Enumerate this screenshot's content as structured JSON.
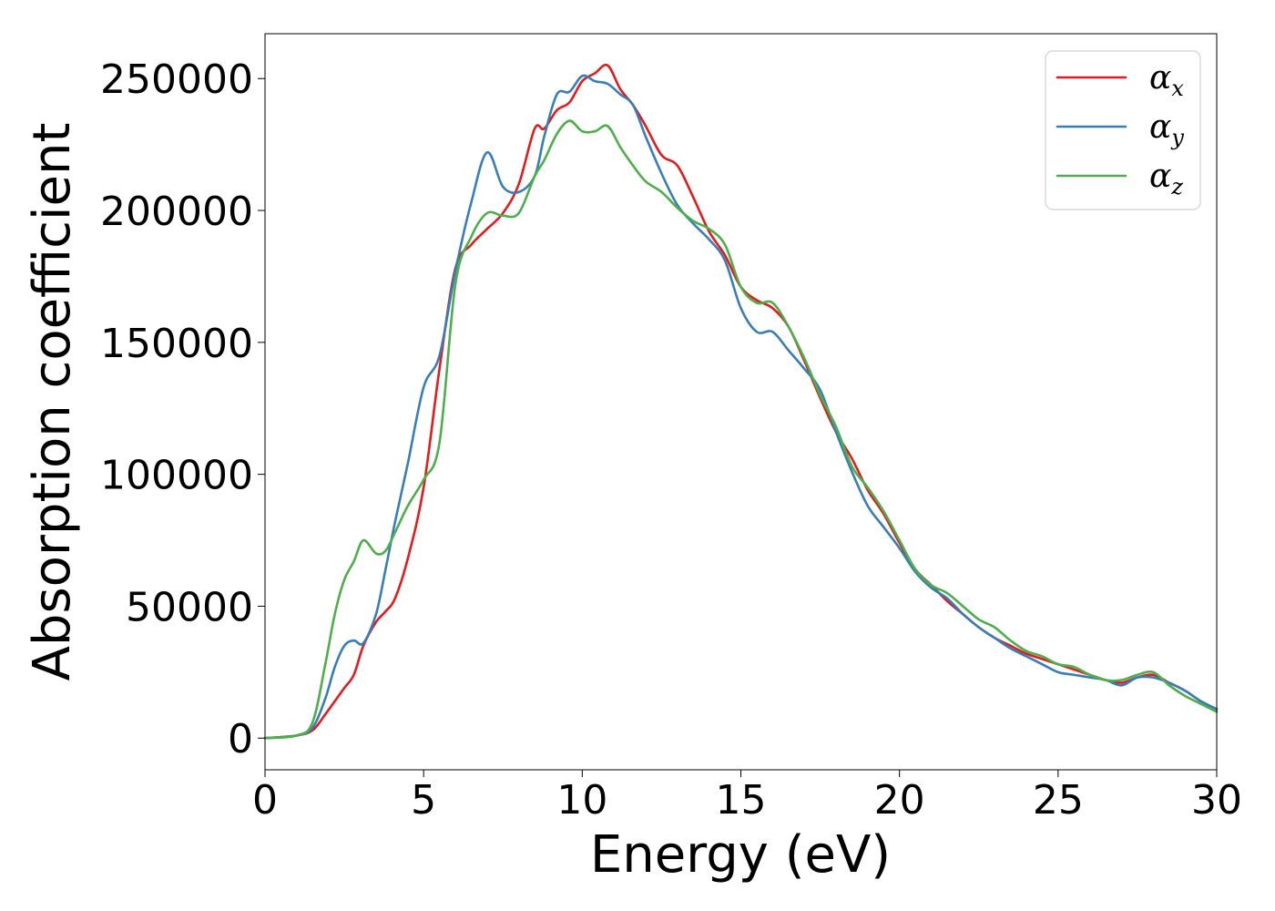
{
  "chart_data": {
    "type": "line",
    "xlabel": "Energy (eV)",
    "ylabel": "Absorption coefficient",
    "xlim": [
      0,
      30
    ],
    "ylim": [
      -12000,
      267000
    ],
    "x_ticks": [
      "0",
      "5",
      "10",
      "15",
      "20",
      "25",
      "30"
    ],
    "y_ticks": [
      "0",
      "50000",
      "100000",
      "150000",
      "200000",
      "250000"
    ],
    "legend_position": "top-right",
    "grid": false,
    "series": [
      {
        "name": "α",
        "subscript": "x",
        "color": "#e41a1c",
        "x": [
          0,
          1,
          1.5,
          1.9,
          2.2,
          2.5,
          2.8,
          3.1,
          3.5,
          3.8,
          4.1,
          4.5,
          5,
          5.5,
          6,
          6.5,
          7,
          7.5,
          8,
          8.5,
          8.8,
          9.2,
          9.6,
          10,
          10.4,
          10.8,
          11.2,
          11.6,
          12,
          12.5,
          13,
          13.5,
          14,
          14.5,
          15,
          15.5,
          16,
          16.5,
          17,
          17.5,
          18,
          18.5,
          19,
          19.5,
          20,
          20.5,
          21,
          21.5,
          22,
          22.5,
          23,
          23.5,
          24,
          24.5,
          25,
          25.5,
          26,
          26.5,
          27,
          27.5,
          28,
          28.5,
          29,
          29.5,
          30
        ],
        "y": [
          0,
          1000,
          3000,
          9000,
          14000,
          19000,
          24000,
          35000,
          44000,
          48000,
          53000,
          68000,
          95000,
          140000,
          178000,
          187000,
          193000,
          199000,
          210000,
          231000,
          231000,
          238000,
          241000,
          249000,
          252000,
          255000,
          246000,
          240000,
          232000,
          221000,
          217000,
          205000,
          192000,
          183000,
          171000,
          166000,
          163000,
          156000,
          143000,
          129000,
          116000,
          106000,
          94000,
          85000,
          74000,
          64000,
          58000,
          52000,
          47000,
          42000,
          38000,
          35000,
          32000,
          30000,
          28000,
          26000,
          24000,
          22000,
          21000,
          23000,
          24000,
          21000,
          18000,
          14000,
          11000
        ]
      },
      {
        "name": "α",
        "subscript": "y",
        "color": "#377eb8",
        "x": [
          0,
          1,
          1.5,
          1.9,
          2.2,
          2.5,
          2.8,
          3.1,
          3.5,
          3.8,
          4.1,
          4.5,
          5,
          5.5,
          6,
          6.5,
          7,
          7.5,
          8,
          8.5,
          8.8,
          9.2,
          9.6,
          10,
          10.4,
          10.8,
          11.2,
          11.6,
          12,
          12.5,
          13,
          13.5,
          14,
          14.5,
          15,
          15.5,
          16,
          16.5,
          17,
          17.5,
          18,
          18.5,
          19,
          19.5,
          20,
          20.5,
          21,
          21.5,
          22,
          22.5,
          23,
          23.5,
          24,
          24.5,
          25,
          25.5,
          26,
          26.5,
          27,
          27.5,
          28,
          28.5,
          29,
          29.5,
          30
        ],
        "y": [
          0,
          1000,
          4000,
          15000,
          27000,
          35000,
          37000,
          36000,
          47000,
          64000,
          82000,
          104000,
          133000,
          145000,
          177000,
          203000,
          222000,
          209000,
          207000,
          213000,
          228000,
          244000,
          245000,
          251000,
          249000,
          248000,
          244000,
          240000,
          228000,
          214000,
          202000,
          195000,
          189000,
          181000,
          163000,
          154000,
          154000,
          147000,
          140000,
          132000,
          116000,
          101000,
          88000,
          80000,
          72000,
          63000,
          57000,
          53000,
          47000,
          42000,
          38000,
          34000,
          31000,
          28000,
          25000,
          24000,
          23000,
          22000,
          20000,
          23000,
          23000,
          21000,
          18000,
          14000,
          11000
        ]
      },
      {
        "name": "α",
        "subscript": "z",
        "color": "#4daf4a",
        "x": [
          0,
          1,
          1.5,
          1.9,
          2.2,
          2.5,
          2.8,
          3.1,
          3.5,
          3.8,
          4.1,
          4.5,
          5,
          5.5,
          6,
          6.5,
          7,
          7.5,
          8,
          8.5,
          8.8,
          9.2,
          9.6,
          10,
          10.4,
          10.8,
          11.2,
          11.6,
          12,
          12.5,
          13,
          13.5,
          14,
          14.5,
          15,
          15.5,
          16,
          16.5,
          17,
          17.5,
          18,
          18.5,
          19,
          19.5,
          20,
          20.5,
          21,
          21.5,
          22,
          22.5,
          23,
          23.5,
          24,
          24.5,
          25,
          25.5,
          26,
          26.5,
          27,
          27.5,
          28,
          28.5,
          29,
          29.5,
          30
        ],
        "y": [
          0,
          1000,
          6000,
          28000,
          47000,
          60000,
          67000,
          75000,
          70000,
          71000,
          78000,
          88000,
          98000,
          112000,
          172000,
          190000,
          199000,
          198000,
          199000,
          213000,
          219000,
          229000,
          234000,
          230000,
          230000,
          232000,
          224000,
          217000,
          211000,
          207000,
          201000,
          196000,
          193000,
          187000,
          171000,
          165000,
          165000,
          156000,
          144000,
          130000,
          118000,
          103000,
          95000,
          86000,
          75000,
          64000,
          58000,
          55000,
          50000,
          45000,
          42000,
          37000,
          33000,
          31000,
          28000,
          27000,
          24000,
          22000,
          22000,
          24000,
          25000,
          20000,
          16000,
          13000,
          10000
        ]
      }
    ]
  }
}
